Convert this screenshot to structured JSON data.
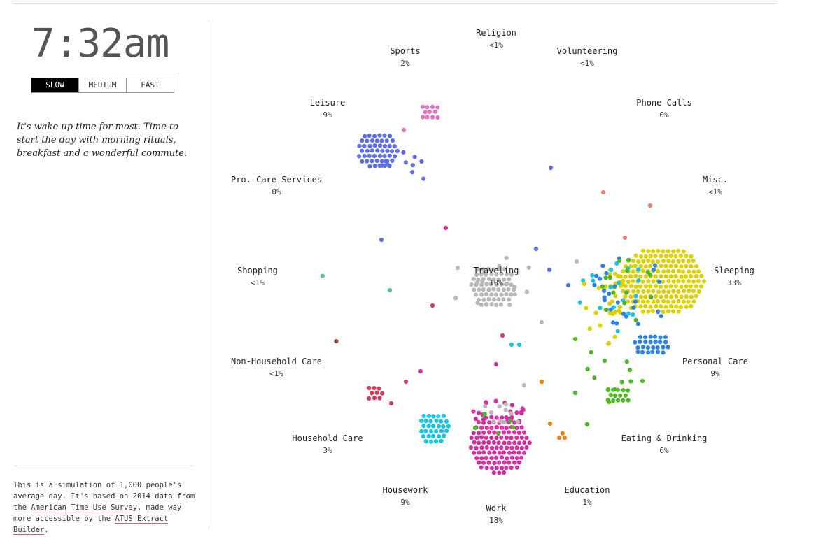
{
  "clock": "7:32am",
  "speed": {
    "options": [
      "SLOW",
      "MEDIUM",
      "FAST"
    ],
    "selected": "SLOW"
  },
  "narrative": "It's wake up time for most. Time to start the day with morning rituals, breakfast and a wonderful commute.",
  "footnote": {
    "prefix": "This is a simulation of 1,000 people's average day. It's based on 2014 data from the ",
    "link1": "American Time Use Survey",
    "middle": ", made way more accessible by the ",
    "link2": "ATUS Extract Builder",
    "suffix": "."
  },
  "activities": [
    {
      "id": "religion",
      "name": "Religion",
      "pct": "<1%",
      "color": "#8aa0cc"
    },
    {
      "id": "sports",
      "name": "Sports",
      "pct": "2%",
      "color": "#e373c8"
    },
    {
      "id": "volunteering",
      "name": "Volunteering",
      "pct": "<1%",
      "color": "#1a8a74"
    },
    {
      "id": "leisure",
      "name": "Leisure",
      "pct": "9%",
      "color": "#5c6ee3"
    },
    {
      "id": "phone-calls",
      "name": "Phone Calls",
      "pct": "0%",
      "color": "#999999"
    },
    {
      "id": "pro-care",
      "name": "Pro. Care Services",
      "pct": "0%",
      "color": "#999999"
    },
    {
      "id": "misc",
      "name": "Misc.",
      "pct": "<1%",
      "color": "#e8836d"
    },
    {
      "id": "shopping",
      "name": "Shopping",
      "pct": "<1%",
      "color": "#5cc79b"
    },
    {
      "id": "traveling",
      "name": "Traveling",
      "pct": "10%",
      "color": "#b8b8b8"
    },
    {
      "id": "sleeping",
      "name": "Sleeping",
      "pct": "33%",
      "color": "#ddd000"
    },
    {
      "id": "non-household-care",
      "name": "Non-Household Care",
      "pct": "<1%",
      "color": "#8b4a3a"
    },
    {
      "id": "personal-care",
      "name": "Personal Care",
      "pct": "9%",
      "color": "#2b84e3"
    },
    {
      "id": "household-care",
      "name": "Household Care",
      "pct": "3%",
      "color": "#dc3a5c"
    },
    {
      "id": "eating-drinking",
      "name": "Eating & Drinking",
      "pct": "6%",
      "color": "#4cb81f"
    },
    {
      "id": "housework",
      "name": "Housework",
      "pct": "9%",
      "color": "#14c6e6"
    },
    {
      "id": "education",
      "name": "Education",
      "pct": "1%",
      "color": "#f27e0c"
    },
    {
      "id": "work",
      "name": "Work",
      "pct": "18%",
      "color": "#d62fa1"
    }
  ]
}
